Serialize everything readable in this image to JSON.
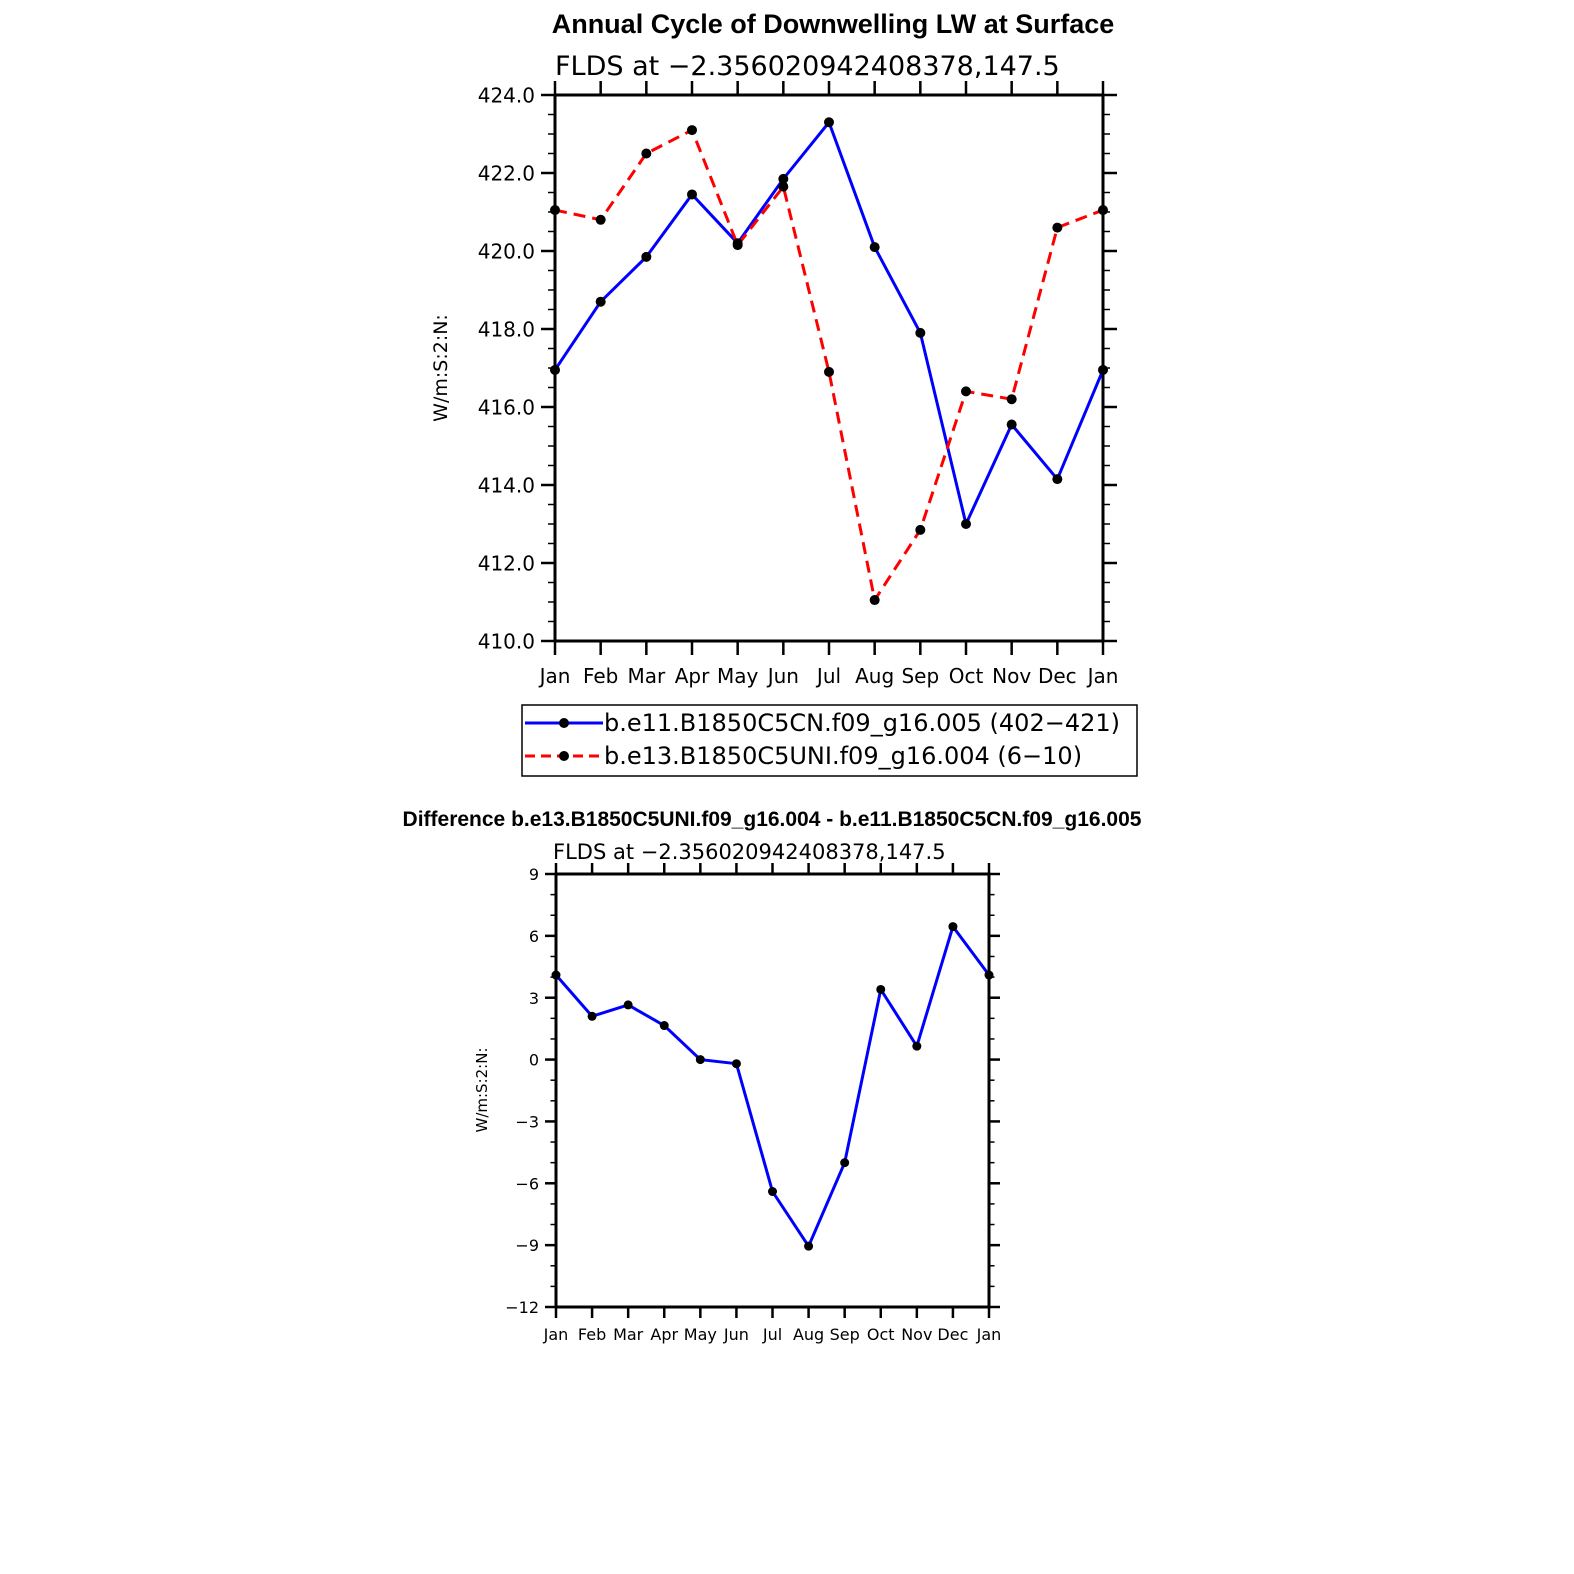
{
  "chart_data": [
    {
      "type": "line",
      "title": "Annual Cycle of Downwelling LW at Surface",
      "subtitle": "FLDS at −2.356020942408378,147.5",
      "xlabel": "",
      "ylabel": "W/m:S:2:N:",
      "categories": [
        "Jan",
        "Feb",
        "Mar",
        "Apr",
        "May",
        "Jun",
        "Jul",
        "Aug",
        "Sep",
        "Oct",
        "Nov",
        "Dec",
        "Jan"
      ],
      "ylim": [
        410,
        424
      ],
      "yticks": [
        410,
        412,
        414,
        416,
        418,
        420,
        422,
        424
      ],
      "ytick_labels": [
        "410.0",
        "412.0",
        "414.0",
        "416.0",
        "418.0",
        "420.0",
        "422.0",
        "424.0"
      ],
      "grid": false,
      "legend_position": "bottom",
      "series": [
        {
          "name": "b.e11.B1850C5CN.f09_g16.005 (402−421)",
          "color": "#0000ff",
          "dash": "solid",
          "values": [
            416.95,
            418.7,
            419.85,
            421.45,
            420.2,
            421.85,
            423.3,
            420.1,
            417.9,
            413.0,
            415.55,
            414.15,
            416.95
          ]
        },
        {
          "name": "b.e13.B1850C5UNI.f09_g16.004 (6−10)",
          "color": "#ff0000",
          "dash": "dashed",
          "values": [
            421.05,
            420.8,
            422.5,
            423.1,
            420.15,
            421.65,
            416.9,
            411.05,
            412.85,
            416.4,
            416.2,
            420.6,
            421.05
          ]
        }
      ]
    },
    {
      "type": "line",
      "title": "Difference b.e13.B1850C5UNI.f09_g16.004 - b.e11.B1850C5CN.f09_g16.005",
      "subtitle": "FLDS at −2.356020942408378,147.5",
      "xlabel": "",
      "ylabel": "W/m:S:2:N:",
      "categories": [
        "Jan",
        "Feb",
        "Mar",
        "Apr",
        "May",
        "Jun",
        "Jul",
        "Aug",
        "Sep",
        "Oct",
        "Nov",
        "Dec",
        "Jan"
      ],
      "ylim": [
        -12,
        9
      ],
      "yticks": [
        -12,
        -9,
        -6,
        -3,
        0,
        3,
        6,
        9
      ],
      "ytick_labels": [
        "−12",
        "−9",
        "−6",
        "−3",
        "0",
        "3",
        "6",
        "9"
      ],
      "grid": false,
      "series": [
        {
          "name": "Difference",
          "color": "#0000ff",
          "dash": "solid",
          "values": [
            4.1,
            2.1,
            2.65,
            1.65,
            0.0,
            -0.2,
            -6.4,
            -9.05,
            -5.0,
            3.4,
            0.65,
            6.45,
            4.1
          ]
        }
      ]
    }
  ]
}
